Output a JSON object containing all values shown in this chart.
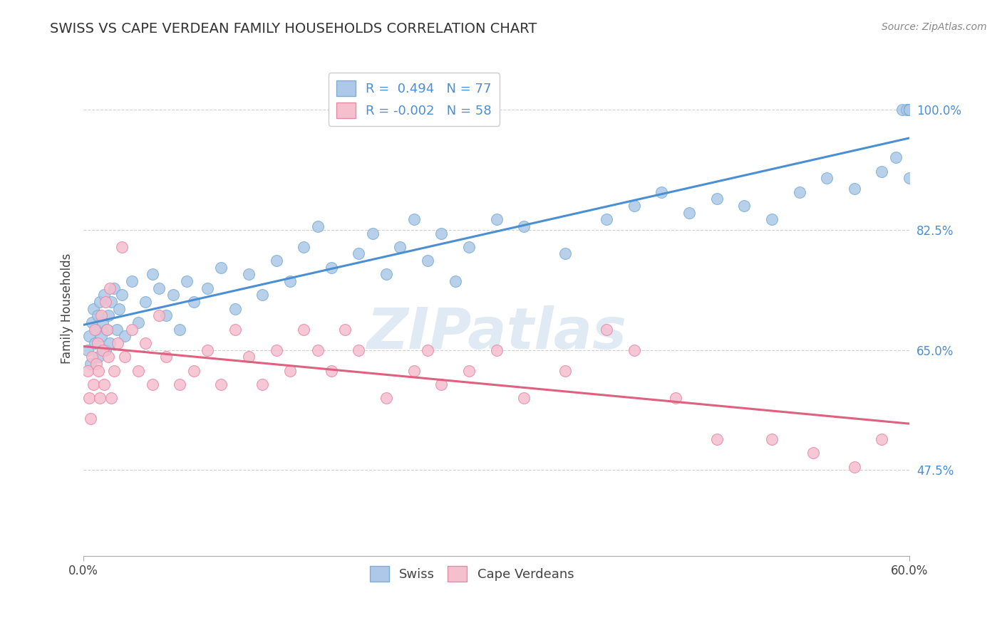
{
  "title": "SWISS VS CAPE VERDEAN FAMILY HOUSEHOLDS CORRELATION CHART",
  "source_text": "Source: ZipAtlas.com",
  "ylabel": "Family Households",
  "yticks": [
    47.5,
    65.0,
    82.5,
    100.0
  ],
  "ytick_labels": [
    "47.5%",
    "65.0%",
    "82.5%",
    "100.0%"
  ],
  "xlim": [
    0.0,
    60.0
  ],
  "ylim": [
    35.0,
    107.0
  ],
  "swiss_R": 0.494,
  "swiss_N": 77,
  "cape_R": -0.002,
  "cape_N": 58,
  "swiss_color": "#adc8e8",
  "swiss_edge_color": "#7aafd4",
  "cape_color": "#f5bfce",
  "cape_edge_color": "#e888a8",
  "swiss_line_color": "#4a8fd4",
  "cape_line_color": "#e06080",
  "watermark_color": "#ccdcee",
  "background_color": "#ffffff",
  "swiss_x": [
    0.3,
    0.4,
    0.5,
    0.6,
    0.7,
    0.8,
    0.9,
    1.0,
    1.1,
    1.2,
    1.3,
    1.4,
    1.5,
    1.6,
    1.7,
    1.8,
    1.9,
    2.0,
    2.2,
    2.4,
    2.6,
    2.8,
    3.0,
    3.5,
    4.0,
    4.5,
    5.0,
    5.5,
    6.0,
    6.5,
    7.0,
    7.5,
    8.0,
    9.0,
    10.0,
    11.0,
    12.0,
    13.0,
    14.0,
    15.0,
    16.0,
    17.0,
    18.0,
    20.0,
    21.0,
    22.0,
    23.0,
    24.0,
    25.0,
    26.0,
    27.0,
    28.0,
    30.0,
    32.0,
    35.0,
    38.0,
    40.0,
    42.0,
    44.0,
    46.0,
    48.0,
    50.0,
    52.0,
    54.0,
    56.0,
    58.0,
    59.0,
    59.5,
    59.8,
    60.0,
    60.0,
    60.0,
    60.0,
    60.0,
    60.0,
    60.0,
    60.0
  ],
  "swiss_y": [
    65.0,
    67.0,
    63.0,
    69.0,
    71.0,
    66.0,
    68.0,
    70.0,
    64.0,
    72.0,
    67.0,
    69.0,
    73.0,
    65.0,
    68.0,
    70.0,
    66.0,
    72.0,
    74.0,
    68.0,
    71.0,
    73.0,
    67.0,
    75.0,
    69.0,
    72.0,
    76.0,
    74.0,
    70.0,
    73.0,
    68.0,
    75.0,
    72.0,
    74.0,
    77.0,
    71.0,
    76.0,
    73.0,
    78.0,
    75.0,
    80.0,
    83.0,
    77.0,
    79.0,
    82.0,
    76.0,
    80.0,
    84.0,
    78.0,
    82.0,
    75.0,
    80.0,
    84.0,
    83.0,
    79.0,
    84.0,
    86.0,
    88.0,
    85.0,
    87.0,
    86.0,
    84.0,
    88.0,
    90.0,
    88.5,
    91.0,
    93.0,
    100.0,
    100.0,
    100.0,
    100.0,
    100.0,
    100.0,
    100.0,
    100.0,
    100.0,
    90.0
  ],
  "cape_x": [
    0.3,
    0.4,
    0.5,
    0.6,
    0.7,
    0.8,
    0.9,
    1.0,
    1.1,
    1.2,
    1.3,
    1.4,
    1.5,
    1.6,
    1.7,
    1.8,
    1.9,
    2.0,
    2.2,
    2.5,
    2.8,
    3.0,
    3.5,
    4.0,
    4.5,
    5.0,
    5.5,
    6.0,
    7.0,
    8.0,
    9.0,
    10.0,
    11.0,
    12.0,
    13.0,
    14.0,
    15.0,
    16.0,
    17.0,
    18.0,
    19.0,
    20.0,
    22.0,
    24.0,
    25.0,
    26.0,
    28.0,
    30.0,
    32.0,
    35.0,
    38.0,
    40.0,
    43.0,
    46.0,
    50.0,
    53.0,
    56.0,
    58.0
  ],
  "cape_y": [
    62.0,
    58.0,
    55.0,
    64.0,
    60.0,
    68.0,
    63.0,
    66.0,
    62.0,
    58.0,
    70.0,
    65.0,
    60.0,
    72.0,
    68.0,
    64.0,
    74.0,
    58.0,
    62.0,
    66.0,
    80.0,
    64.0,
    68.0,
    62.0,
    66.0,
    60.0,
    70.0,
    64.0,
    60.0,
    62.0,
    65.0,
    60.0,
    68.0,
    64.0,
    60.0,
    65.0,
    62.0,
    68.0,
    65.0,
    62.0,
    68.0,
    65.0,
    58.0,
    62.0,
    65.0,
    60.0,
    62.0,
    65.0,
    58.0,
    62.0,
    68.0,
    65.0,
    58.0,
    52.0,
    52.0,
    50.0,
    48.0,
    52.0
  ]
}
